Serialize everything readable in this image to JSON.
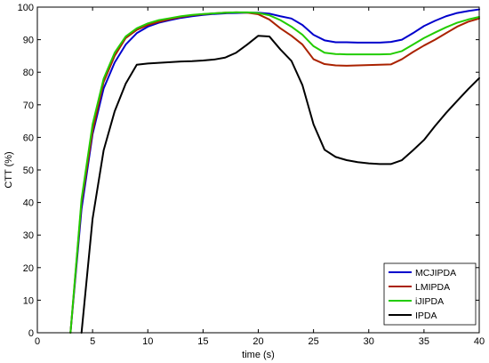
{
  "chart_data": {
    "type": "line",
    "xlabel": "time (s)",
    "ylabel": "CTT (%)",
    "xlim": [
      0,
      40
    ],
    "ylim": [
      0,
      100
    ],
    "xticks": [
      0,
      5,
      10,
      15,
      20,
      25,
      30,
      35,
      40
    ],
    "yticks": [
      0,
      10,
      20,
      30,
      40,
      50,
      60,
      70,
      80,
      90,
      100
    ],
    "grid": false,
    "legend_position": "bottom-right",
    "series": [
      {
        "name": "MCJIPDA",
        "color": "#0000cc",
        "x": [
          3,
          4,
          5,
          6,
          7,
          8,
          9,
          10,
          11,
          12,
          13,
          14,
          15,
          16,
          17,
          18,
          19,
          20,
          21,
          22,
          23,
          24,
          25,
          26,
          27,
          28,
          29,
          30,
          31,
          32,
          33,
          34,
          35,
          36,
          37,
          38,
          39,
          40
        ],
        "y": [
          0,
          38,
          61,
          75,
          83,
          88.5,
          92,
          94,
          95.2,
          96,
          96.7,
          97.2,
          97.6,
          97.9,
          98.1,
          98.2,
          98.3,
          98.3,
          98,
          97.2,
          96.5,
          94.5,
          91.5,
          89.8,
          89.2,
          89.2,
          89.1,
          89.1,
          89.1,
          89.3,
          90,
          92,
          94.2,
          95.8,
          97.2,
          98.2,
          98.8,
          99.3
        ]
      },
      {
        "name": "LMIPDA",
        "color": "#aa2200",
        "x": [
          3,
          4,
          5,
          6,
          7,
          8,
          9,
          10,
          11,
          12,
          13,
          14,
          15,
          16,
          17,
          18,
          19,
          20,
          21,
          22,
          23,
          24,
          25,
          26,
          27,
          28,
          29,
          30,
          31,
          32,
          33,
          34,
          35,
          36,
          37,
          38,
          39,
          40
        ],
        "y": [
          0,
          40,
          62,
          77,
          85,
          90.5,
          93,
          94.5,
          95.5,
          96.3,
          97,
          97.5,
          97.8,
          98.1,
          98.3,
          98.4,
          98.3,
          97.8,
          96.2,
          93.5,
          91.2,
          88.5,
          84,
          82.5,
          82.1,
          82,
          82.1,
          82.2,
          82.3,
          82.4,
          84,
          86.2,
          88.2,
          90,
          92,
          94,
          95.5,
          96.5
        ]
      },
      {
        "name": "iJIPDA",
        "color": "#22cc00",
        "x": [
          3,
          4,
          5,
          6,
          7,
          8,
          9,
          10,
          11,
          12,
          13,
          14,
          15,
          16,
          17,
          18,
          19,
          20,
          21,
          22,
          23,
          24,
          25,
          26,
          27,
          28,
          29,
          30,
          31,
          32,
          33,
          34,
          35,
          36,
          37,
          38,
          39,
          40
        ],
        "y": [
          0,
          41,
          64,
          78,
          86,
          91,
          93.5,
          95,
          96,
          96.6,
          97.2,
          97.6,
          97.9,
          98.1,
          98.3,
          98.4,
          98.4,
          98.2,
          97.5,
          96,
          94,
          91.5,
          88,
          86,
          85.6,
          85.5,
          85.5,
          85.5,
          85.5,
          85.6,
          86.5,
          88.5,
          90.5,
          92.2,
          93.8,
          95.2,
          96.2,
          97
        ]
      },
      {
        "name": "IPDA",
        "color": "#000000",
        "x": [
          4,
          5,
          6,
          7,
          8,
          9,
          10,
          11,
          12,
          13,
          14,
          15,
          16,
          17,
          18,
          19,
          20,
          21,
          22,
          23,
          24,
          25,
          26,
          27,
          28,
          29,
          30,
          31,
          32,
          33,
          34,
          35,
          36,
          37,
          38,
          39,
          40
        ],
        "y": [
          0,
          35,
          56,
          68,
          76.5,
          82.3,
          82.7,
          82.9,
          83.1,
          83.3,
          83.4,
          83.6,
          83.9,
          84.5,
          86,
          88.5,
          91.2,
          91,
          87,
          83.5,
          76,
          64,
          56.2,
          54,
          53,
          52.4,
          52,
          51.8,
          51.8,
          53,
          56,
          59.2,
          63.5,
          67.5,
          71.2,
          74.8,
          78.2
        ]
      }
    ]
  }
}
